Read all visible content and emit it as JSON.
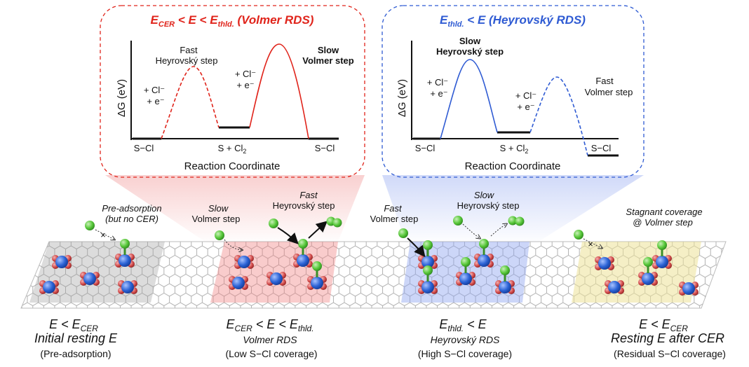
{
  "colors": {
    "red": "#e0241b",
    "blue": "#2f5bd3",
    "gray_region": "#bdbdbd",
    "red_region": "#f29a9a",
    "blue_region": "#9aaef0",
    "yellow_region": "#efe7a6",
    "atom_green": "#58c83a",
    "atom_blue": "#2b63d6",
    "atom_red": "#d24a4a"
  },
  "panel_left": {
    "title": "E_CER < E < E_thld. (Volmer RDS)",
    "y_label": "ΔG (eV)",
    "x_label": "Reaction Coordinate",
    "states": [
      "S−Cl",
      "S + Cl2",
      "S−Cl"
    ],
    "step1_label_a": "Fast",
    "step1_label_b": "Heyrovský step",
    "step1_reagent_a": "+ Cl⁻",
    "step1_reagent_b": "+ e⁻",
    "step2_label_a": "Slow",
    "step2_label_b": "Volmer step",
    "step2_reagent_a": "+ Cl⁻",
    "step2_reagent_b": "+ e⁻"
  },
  "panel_right": {
    "title": "E_thld. < E (Heyrovský RDS)",
    "y_label": "ΔG (eV)",
    "x_label": "Reaction Coordinate",
    "states": [
      "S−Cl",
      "S + Cl2",
      "S−Cl"
    ],
    "step1_label_a": "Slow",
    "step1_label_b": "Heyrovský step",
    "step1_reagent_a": "+ Cl⁻",
    "step1_reagent_b": "+ e⁻",
    "step2_label_a": "Fast",
    "step2_label_b": "Volmer step",
    "step2_reagent_a": "+ Cl⁻",
    "step2_reagent_b": "+ e⁻"
  },
  "annotations": {
    "pre_ads_a": "Pre-adsorption",
    "pre_ads_b": "(but no CER)",
    "slow": "Slow",
    "volmer_step": "Volmer step",
    "fast_heyrovsky_a": "Fast",
    "fast_heyrovsky_b": "Heyrovský step",
    "fast_volmer_a": "Fast",
    "fast_volmer_b": "Volmer step",
    "slow_heyrovsky_a": "Slow",
    "slow_heyrovsky_b": "Heyrovský step",
    "stagnant_a": "Stagnant coverage",
    "stagnant_b": "@ Volmer step"
  },
  "stages": [
    {
      "title_a": "E < E_CER",
      "title_b": "Initial resting E",
      "sub": "(Pre-adsorption)"
    },
    {
      "title_a": "E_CER < E < E_thld.",
      "title_b": "Volmer RDS",
      "sub": "(Low S−Cl coverage)"
    },
    {
      "title_a": "E_thld. < E",
      "title_b": "Heyrovský RDS",
      "sub": "(High S−Cl coverage)"
    },
    {
      "title_a": "E < E_CER",
      "title_b": "Resting E after CER",
      "sub": "(Residual S−Cl coverage)"
    }
  ]
}
